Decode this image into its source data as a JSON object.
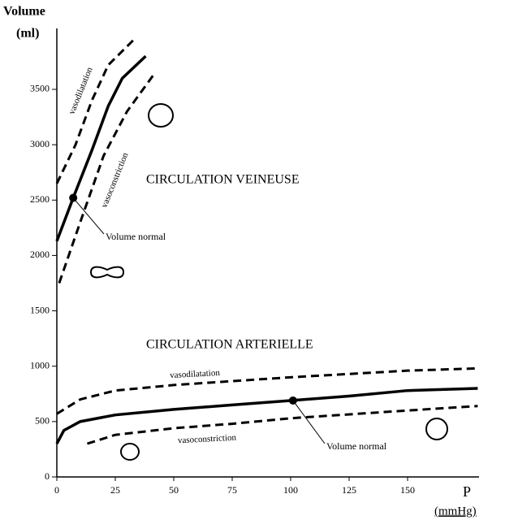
{
  "chart_data": {
    "type": "line",
    "y_label": [
      "Volume",
      "(ml)"
    ],
    "x_label": [
      "P",
      "(mmHg)"
    ],
    "xlim": [
      0,
      180
    ],
    "ylim": [
      0,
      4050
    ],
    "xticks": [
      0,
      25,
      50,
      75,
      100,
      125,
      150
    ],
    "yticks": [
      0,
      500,
      1000,
      1500,
      2000,
      2500,
      3000,
      3500
    ],
    "annotations": [
      "CIRCULATION VEINEUSE",
      "CIRCULATION ARTERIELLE"
    ],
    "series": [
      {
        "color": "#000000",
        "dashed": false,
        "x": [
          0,
          7,
          15,
          22,
          28,
          38
        ],
        "values": [
          2130,
          2520,
          2950,
          3350,
          3600,
          3800
        ]
      },
      {
        "name": "vasodilatation",
        "color": "#000000",
        "dashed": true,
        "x": [
          0,
          8,
          15,
          22,
          33
        ],
        "values": [
          2650,
          3000,
          3400,
          3720,
          3950
        ]
      },
      {
        "name": "vasoconstriction",
        "color": "#000000",
        "dashed": true,
        "x": [
          1,
          10,
          20,
          30,
          42
        ],
        "values": [
          1750,
          2300,
          2900,
          3300,
          3650
        ]
      },
      {
        "color": "#000000",
        "dashed": false,
        "x": [
          0,
          3,
          10,
          25,
          50,
          75,
          100,
          125,
          150,
          180
        ],
        "values": [
          300,
          420,
          500,
          560,
          610,
          650,
          690,
          730,
          780,
          800
        ]
      },
      {
        "name": "vasodilatation",
        "color": "#000000",
        "dashed": true,
        "x": [
          0,
          10,
          25,
          50,
          100,
          150,
          180
        ],
        "values": [
          570,
          700,
          780,
          830,
          900,
          960,
          980
        ]
      },
      {
        "name": "vasoconstriction",
        "color": "#000000",
        "dashed": true,
        "x": [
          13,
          25,
          50,
          75,
          100,
          150,
          180
        ],
        "values": [
          300,
          380,
          440,
          480,
          530,
          600,
          640
        ]
      }
    ],
    "points": [
      {
        "x": 7,
        "y": 2520,
        "label": "Volume normal"
      },
      {
        "x": 101,
        "y": 690,
        "label": "Volume normal"
      }
    ]
  }
}
